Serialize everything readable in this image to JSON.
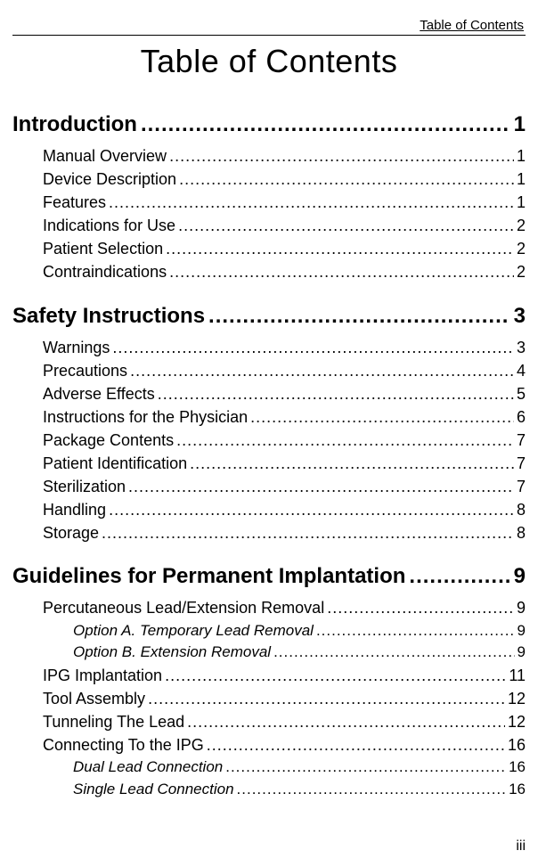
{
  "header_label": "Table of Contents",
  "title": "Table of Contents",
  "page_number": "iii",
  "sections": [
    {
      "heading": "Introduction",
      "page": "1",
      "entries": [
        {
          "label": "Manual Overview",
          "page": "1",
          "sub": false
        },
        {
          "label": "Device Description",
          "page": "1",
          "sub": false
        },
        {
          "label": "Features",
          "page": "1",
          "sub": false
        },
        {
          "label": "Indications for Use",
          "page": "2",
          "sub": false
        },
        {
          "label": "Patient Selection",
          "page": "2",
          "sub": false
        },
        {
          "label": "Contraindications",
          "page": "2",
          "sub": false
        }
      ]
    },
    {
      "heading": "Safety Instructions",
      "page": "3",
      "entries": [
        {
          "label": "Warnings",
          "page": "3",
          "sub": false
        },
        {
          "label": "Precautions",
          "page": "4",
          "sub": false
        },
        {
          "label": "Adverse Effects",
          "page": "5",
          "sub": false
        },
        {
          "label": "Instructions for the Physician",
          "page": "6",
          "sub": false
        },
        {
          "label": "Package Contents",
          "page": "7",
          "sub": false
        },
        {
          "label": "Patient Identification",
          "page": "7",
          "sub": false
        },
        {
          "label": "Sterilization",
          "page": "7",
          "sub": false
        },
        {
          "label": "Handling",
          "page": "8",
          "sub": false
        },
        {
          "label": "Storage",
          "page": "8",
          "sub": false
        }
      ]
    },
    {
      "heading": "Guidelines for Permanent Implantation",
      "page": "9",
      "entries": [
        {
          "label": "Percutaneous Lead/Extension Removal",
          "page": "9",
          "sub": false
        },
        {
          "label": "Option A. Temporary Lead Removal",
          "page": "9",
          "sub": true
        },
        {
          "label": "Option B. Extension Removal",
          "page": "9",
          "sub": true
        },
        {
          "label": "IPG Implantation",
          "page": "11",
          "sub": false
        },
        {
          "label": "Tool Assembly",
          "page": "12",
          "sub": false
        },
        {
          "label": "Tunneling The Lead",
          "page": "12",
          "sub": false
        },
        {
          "label": "Connecting To the IPG",
          "page": "16",
          "sub": false
        },
        {
          "label": "Dual Lead Connection",
          "page": "16",
          "sub": true
        },
        {
          "label": "Single Lead Connection",
          "page": "16",
          "sub": true
        }
      ]
    }
  ]
}
